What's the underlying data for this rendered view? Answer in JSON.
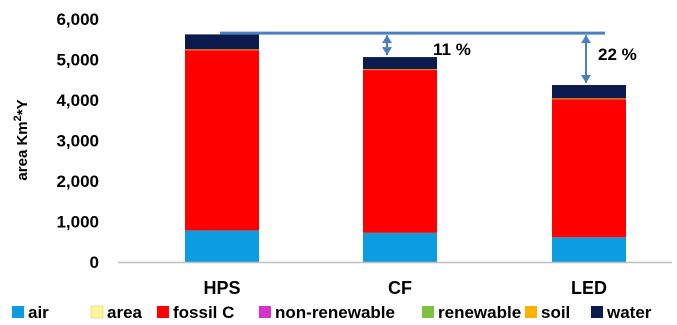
{
  "chart_data": {
    "type": "bar",
    "stacked": true,
    "ylabel": "area Km²*Y",
    "ylabel_base": "area Km",
    "ylabel_sup": "2",
    "ylabel_tail": "*Y",
    "ylim": [
      0,
      6000
    ],
    "ytick_labels": [
      "0",
      "1,000",
      "2,000",
      "3,000",
      "4,000",
      "5,000",
      "6,000"
    ],
    "categories": [
      "HPS",
      "CF",
      "LED"
    ],
    "series": [
      {
        "name": "air",
        "color": "#0b9de0",
        "values": [
          780,
          720,
          610
        ]
      },
      {
        "name": "area",
        "color": "#fff59d",
        "values": [
          0,
          0,
          0
        ]
      },
      {
        "name": "fossil C",
        "color": "#ff0000",
        "values": [
          4450,
          4020,
          3410
        ]
      },
      {
        "name": "non-renewable",
        "color": "#d633c8",
        "values": [
          0,
          0,
          0
        ]
      },
      {
        "name": "renewable",
        "color": "#7dc242",
        "values": [
          0,
          0,
          0
        ]
      },
      {
        "name": "soil",
        "color": "#ffb000",
        "values": [
          20,
          20,
          20
        ]
      },
      {
        "name": "water",
        "color": "#0b1b4e",
        "values": [
          370,
          300,
          330
        ]
      }
    ],
    "reference_line_value": 5650,
    "annotations": [
      {
        "label": "11 %",
        "category": "CF"
      },
      {
        "label": "22 %",
        "category": "LED"
      }
    ],
    "grid": false,
    "legend_position": "bottom",
    "colors": {
      "axis": "#bfbfbf",
      "reference": "#4a7fc1",
      "text": "#000000"
    }
  }
}
